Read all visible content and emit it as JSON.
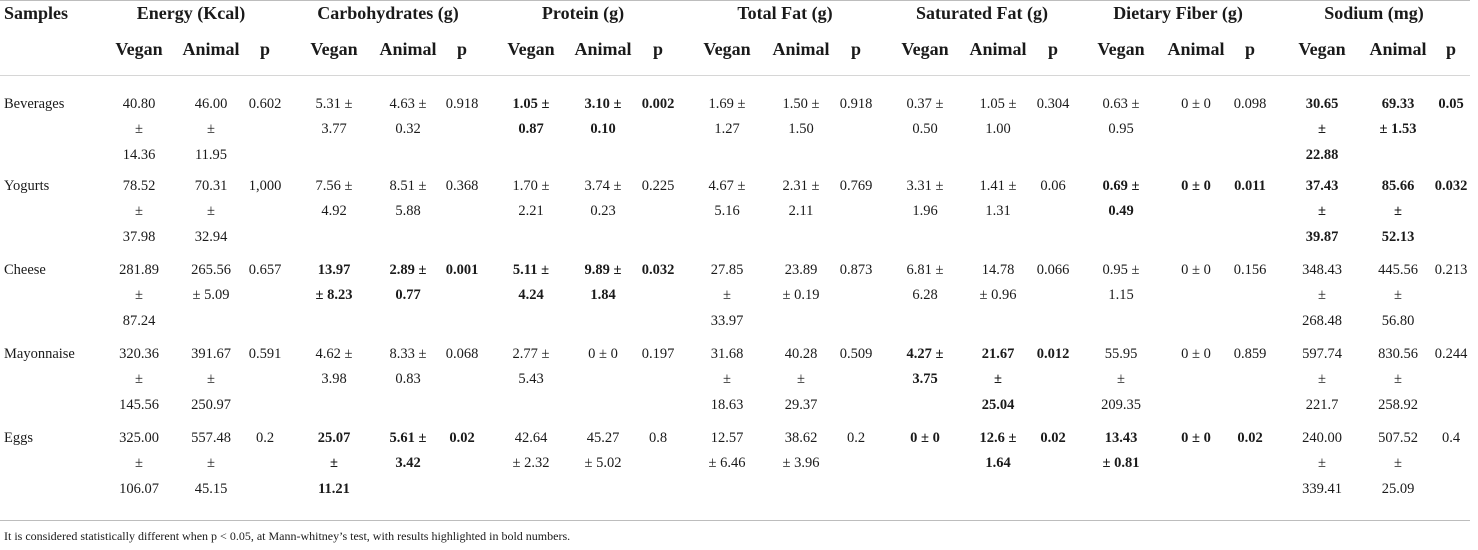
{
  "table": {
    "samples_header": "Samples",
    "groups": [
      "Energy (Kcal)",
      "Carbohydrates (g)",
      "Protein (g)",
      "Total Fat (g)",
      "Saturated Fat (g)",
      "Dietary Fiber (g)",
      "Sodium (mg)"
    ],
    "subheaders": [
      "Vegan",
      "Animal",
      "p"
    ],
    "rows": [
      {
        "label": "Beverages",
        "cells": [
          {
            "t": "40.80\n±\n14.36",
            "b": false
          },
          {
            "t": "46.00\n±\n11.95",
            "b": false
          },
          {
            "t": "0.602",
            "b": false
          },
          {
            "t": "5.31 ±\n3.77",
            "b": false
          },
          {
            "t": "4.63 ±\n0.32",
            "b": false
          },
          {
            "t": "0.918",
            "b": false
          },
          {
            "t": "1.05 ±\n0.87",
            "b": true
          },
          {
            "t": "3.10 ±\n0.10",
            "b": true
          },
          {
            "t": "0.002",
            "b": true
          },
          {
            "t": "1.69 ±\n1.27",
            "b": false
          },
          {
            "t": "1.50 ±\n1.50",
            "b": false
          },
          {
            "t": "0.918",
            "b": false
          },
          {
            "t": "0.37 ±\n0.50",
            "b": false
          },
          {
            "t": "1.05 ±\n1.00",
            "b": false
          },
          {
            "t": "0.304",
            "b": false
          },
          {
            "t": "0.63 ±\n0.95",
            "b": false
          },
          {
            "t": "0 ± 0",
            "b": false
          },
          {
            "t": "0.098",
            "b": false
          },
          {
            "t": "30.65\n±\n22.88",
            "b": true
          },
          {
            "t": "69.33\n± 1.53",
            "b": true
          },
          {
            "t": "0.05",
            "b": true
          }
        ]
      },
      {
        "label": "Yogurts",
        "cells": [
          {
            "t": "78.52\n±\n37.98",
            "b": false
          },
          {
            "t": "70.31\n±\n32.94",
            "b": false
          },
          {
            "t": "1,000",
            "b": false
          },
          {
            "t": "7.56 ±\n4.92",
            "b": false
          },
          {
            "t": "8.51 ±\n5.88",
            "b": false
          },
          {
            "t": "0.368",
            "b": false
          },
          {
            "t": "1.70 ±\n2.21",
            "b": false
          },
          {
            "t": "3.74 ±\n0.23",
            "b": false
          },
          {
            "t": "0.225",
            "b": false
          },
          {
            "t": "4.67 ±\n5.16",
            "b": false
          },
          {
            "t": "2.31 ±\n2.11",
            "b": false
          },
          {
            "t": "0.769",
            "b": false
          },
          {
            "t": "3.31 ±\n1.96",
            "b": false
          },
          {
            "t": "1.41 ±\n1.31",
            "b": false
          },
          {
            "t": "0.06",
            "b": false
          },
          {
            "t": "0.69 ±\n0.49",
            "b": true
          },
          {
            "t": "0 ± 0",
            "b": true
          },
          {
            "t": "0.011",
            "b": true
          },
          {
            "t": "37.43\n±\n39.87",
            "b": true
          },
          {
            "t": "85.66\n±\n52.13",
            "b": true
          },
          {
            "t": "0.032",
            "b": true
          }
        ]
      },
      {
        "label": "Cheese",
        "cells": [
          {
            "t": "281.89\n±\n87.24",
            "b": false
          },
          {
            "t": "265.56\n± 5.09",
            "b": false
          },
          {
            "t": "0.657",
            "b": false
          },
          {
            "t": "13.97\n± 8.23",
            "b": true
          },
          {
            "t": "2.89 ±\n0.77",
            "b": true
          },
          {
            "t": "0.001",
            "b": true
          },
          {
            "t": "5.11 ±\n4.24",
            "b": true
          },
          {
            "t": "9.89 ±\n1.84",
            "b": true
          },
          {
            "t": "0.032",
            "b": true
          },
          {
            "t": "27.85\n±\n33.97",
            "b": false
          },
          {
            "t": "23.89\n± 0.19",
            "b": false
          },
          {
            "t": "0.873",
            "b": false
          },
          {
            "t": "6.81 ±\n6.28",
            "b": false
          },
          {
            "t": "14.78\n± 0.96",
            "b": false
          },
          {
            "t": "0.066",
            "b": false
          },
          {
            "t": "0.95 ±\n1.15",
            "b": false
          },
          {
            "t": "0 ± 0",
            "b": false
          },
          {
            "t": "0.156",
            "b": false
          },
          {
            "t": "348.43\n±\n268.48",
            "b": false
          },
          {
            "t": "445.56\n±\n56.80",
            "b": false
          },
          {
            "t": "0.213",
            "b": false
          }
        ]
      },
      {
        "label": "Mayonnaise",
        "cells": [
          {
            "t": "320.36\n±\n145.56",
            "b": false
          },
          {
            "t": "391.67\n±\n250.97",
            "b": false
          },
          {
            "t": "0.591",
            "b": false
          },
          {
            "t": "4.62 ±\n3.98",
            "b": false
          },
          {
            "t": "8.33 ±\n0.83",
            "b": false
          },
          {
            "t": "0.068",
            "b": false
          },
          {
            "t": "2.77 ±\n5.43",
            "b": false
          },
          {
            "t": "0 ± 0",
            "b": false
          },
          {
            "t": "0.197",
            "b": false
          },
          {
            "t": "31.68\n±\n18.63",
            "b": false
          },
          {
            "t": "40.28\n±\n29.37",
            "b": false
          },
          {
            "t": "0.509",
            "b": false
          },
          {
            "t": "4.27 ±\n3.75",
            "b": true
          },
          {
            "t": "21.67\n±\n25.04",
            "b": true
          },
          {
            "t": "0.012",
            "b": true
          },
          {
            "t": "55.95\n±\n209.35",
            "b": false
          },
          {
            "t": "0 ± 0",
            "b": false
          },
          {
            "t": "0.859",
            "b": false
          },
          {
            "t": "597.74\n±\n221.7",
            "b": false
          },
          {
            "t": "830.56\n±\n258.92",
            "b": false
          },
          {
            "t": "0.244",
            "b": false
          }
        ]
      },
      {
        "label": "Eggs",
        "cells": [
          {
            "t": "325.00\n±\n106.07",
            "b": false
          },
          {
            "t": "557.48\n±\n45.15",
            "b": false
          },
          {
            "t": "0.2",
            "b": false
          },
          {
            "t": "25.07\n±\n11.21",
            "b": true
          },
          {
            "t": "5.61 ±\n3.42",
            "b": true
          },
          {
            "t": "0.02",
            "b": true
          },
          {
            "t": "42.64\n± 2.32",
            "b": false
          },
          {
            "t": "45.27\n± 5.02",
            "b": false
          },
          {
            "t": "0.8",
            "b": false
          },
          {
            "t": "12.57\n± 6.46",
            "b": false
          },
          {
            "t": "38.62\n± 3.96",
            "b": false
          },
          {
            "t": "0.2",
            "b": false
          },
          {
            "t": "0 ± 0",
            "b": true
          },
          {
            "t": "12.6 ±\n1.64",
            "b": true
          },
          {
            "t": "0.02",
            "b": true
          },
          {
            "t": "13.43\n± 0.81",
            "b": true
          },
          {
            "t": "0 ± 0",
            "b": true
          },
          {
            "t": "0.02",
            "b": true
          },
          {
            "t": "240.00\n±\n339.41",
            "b": false
          },
          {
            "t": "507.52\n±\n25.09",
            "b": false
          },
          {
            "t": "0.4",
            "b": false
          }
        ]
      }
    ],
    "footnote": "It is considered statistically different when p < 0.05, at Mann-whitney’s test, with results highlighted in bold numbers."
  }
}
